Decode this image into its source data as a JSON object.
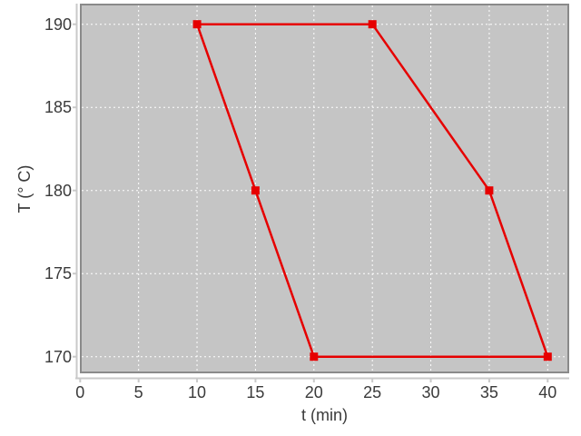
{
  "chart_data": {
    "type": "line",
    "title": "",
    "xlabel": "t (min)",
    "ylabel": "T (° C)",
    "xticks": [
      0,
      5,
      10,
      15,
      20,
      25,
      30,
      35,
      40
    ],
    "yticks": [
      170,
      175,
      180,
      185,
      190
    ],
    "xlim": [
      0,
      41.8
    ],
    "ylim": [
      169,
      191.3
    ],
    "grid": true,
    "grid_style": "dashed",
    "legend": false,
    "series": [
      {
        "color": "#e60000",
        "marker": "square",
        "marker_size": 9,
        "line_width": 2.5,
        "closed_loop": true,
        "points": [
          [
            10,
            190
          ],
          [
            15,
            180
          ],
          [
            20,
            170
          ],
          [
            40,
            170
          ],
          [
            35,
            180
          ],
          [
            25,
            190
          ],
          [
            10,
            190
          ]
        ]
      }
    ],
    "colors": {
      "plot_background": "#c5c5c5",
      "plot_border": "#8a8a8a",
      "gridline": "#ffffff",
      "axis_line": "#c9c9c9",
      "tick_text": "#3a3a3a",
      "page_background": "#ffffff"
    }
  }
}
